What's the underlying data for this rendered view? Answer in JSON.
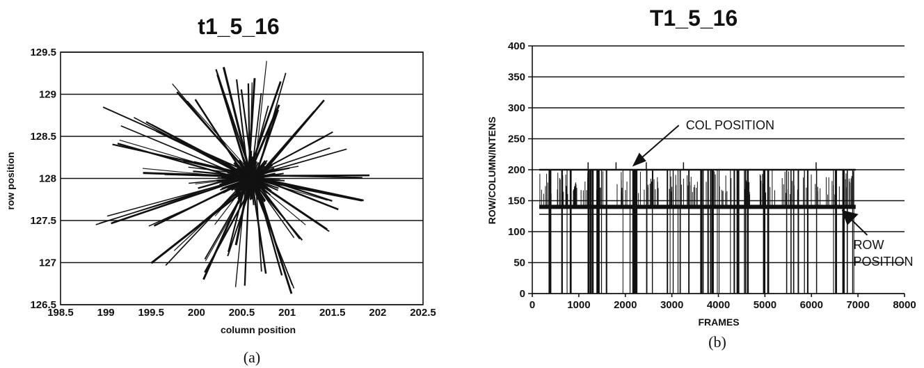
{
  "chart_data": [
    {
      "type": "line",
      "title": "t1_5_16",
      "xlabel": "column position",
      "ylabel": "row position",
      "caption": "(a)",
      "xlim": [
        198.5,
        202.5
      ],
      "ylim": [
        126.5,
        129.5
      ],
      "x_ticks": [
        "198.5",
        "199",
        "199.5",
        "200",
        "200.5",
        "201",
        "201.5",
        "202",
        "202.5"
      ],
      "y_ticks": [
        "126.5",
        "127",
        "127.5",
        "128",
        "128.5",
        "129",
        "129.5"
      ],
      "grid": "horizontal",
      "center": [
        200.6,
        128.0
      ],
      "trace_endpoints": [
        [
          198.8,
          128.5
        ],
        [
          199.0,
          128.8
        ],
        [
          199.2,
          127.3
        ],
        [
          199.4,
          128.7
        ],
        [
          199.5,
          126.9
        ],
        [
          199.7,
          129.2
        ],
        [
          199.9,
          127.9
        ],
        [
          200.0,
          126.7
        ],
        [
          200.2,
          129.4
        ],
        [
          200.3,
          127.0
        ],
        [
          200.5,
          126.6
        ],
        [
          200.5,
          129.3
        ],
        [
          200.7,
          129.4
        ],
        [
          200.8,
          126.8
        ],
        [
          201.0,
          129.3
        ],
        [
          201.1,
          126.6
        ],
        [
          201.3,
          127.1
        ],
        [
          201.5,
          128.9
        ],
        [
          201.6,
          127.6
        ],
        [
          201.8,
          128.4
        ],
        [
          201.9,
          127.7
        ],
        [
          202.0,
          128.0
        ],
        [
          201.7,
          128.7
        ],
        [
          201.4,
          127.4
        ],
        [
          200.1,
          127.4
        ],
        [
          199.8,
          128.2
        ],
        [
          199.3,
          128.1
        ],
        [
          198.9,
          127.5
        ],
        [
          200.9,
          129.0
        ],
        [
          201.2,
          128.1
        ]
      ]
    },
    {
      "type": "line",
      "title": "T1_5_16",
      "xlabel": "FRAMES",
      "ylabel": "ROW/COLUMN/INTENS",
      "caption": "(b)",
      "xlim": [
        0,
        8000
      ],
      "ylim": [
        0,
        400
      ],
      "x_ticks": [
        "0",
        "1000",
        "2000",
        "3000",
        "4000",
        "5000",
        "6000",
        "7000",
        "8000"
      ],
      "y_ticks": [
        "0",
        "50",
        "100",
        "150",
        "200",
        "250",
        "300",
        "350",
        "400"
      ],
      "grid": "horizontal",
      "frame_range": [
        150,
        6950
      ],
      "series": [
        {
          "level": 200,
          "label": "COL POSITION"
        },
        {
          "level": 140,
          "label": "ROW POSITION"
        }
      ],
      "annotations": [
        {
          "text": "COL POSITION",
          "x": 3300,
          "y": 265,
          "target": [
            2150,
            205
          ]
        },
        {
          "text": "ROW",
          "x": 6900,
          "y": 72,
          "target": [
            6650,
            135
          ]
        },
        {
          "text": "POSITION",
          "x": 6900,
          "y": 45
        }
      ]
    }
  ]
}
